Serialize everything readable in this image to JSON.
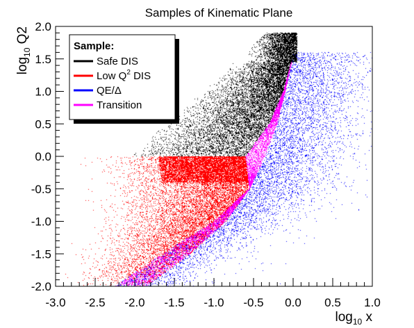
{
  "chart_data": {
    "type": "scatter",
    "title": "Samples of Kinematic Plane",
    "xlabel": {
      "prefix": "log",
      "sub": "10",
      "suffix": " x"
    },
    "ylabel": {
      "prefix": "log",
      "sub": "10",
      "suffix": " Q2"
    },
    "xlim": [
      -3.0,
      1.0
    ],
    "ylim": [
      -2.0,
      2.0
    ],
    "x_ticks": [
      "-3.0",
      "-2.5",
      "-2.0",
      "-1.5",
      "-1.0",
      "-0.5",
      "0.0",
      "0.5",
      "1.0"
    ],
    "y_ticks": [
      "-2.0",
      "-1.5",
      "-1.0",
      "-0.5",
      "0.0",
      "0.5",
      "1.0",
      "1.5",
      "2.0"
    ],
    "grid": false,
    "legend": {
      "header": "Sample:",
      "placement": "top-left",
      "entries": [
        {
          "label": "Safe DIS",
          "sup": "",
          "suffix": "",
          "color": "#000000"
        },
        {
          "label": "Low Q",
          "sup": "2",
          "suffix": " DIS",
          "color": "#ff0000"
        },
        {
          "label": "QE/Δ",
          "sup": "",
          "suffix": "",
          "color": "#0000ff"
        },
        {
          "label": "Transition",
          "sup": "",
          "suffix": "",
          "color": "#ff00ff"
        }
      ]
    },
    "series": [
      {
        "name": "Safe DIS",
        "color": "#000000",
        "region": {
          "x_boundary_at_y": [
            [
              0.0,
              -0.6
            ],
            [
              0.5,
              -0.3
            ],
            [
              1.0,
              -0.12
            ],
            [
              1.45,
              -0.02
            ]
          ],
          "y_range": [
            0.0,
            1.9
          ],
          "x_min": -1.9
        }
      },
      {
        "name": "Low Q2 DIS",
        "color": "#ff0000",
        "region": {
          "y_range": [
            -2.0,
            0.0
          ],
          "x_range": [
            -3.0,
            -0.6
          ]
        }
      },
      {
        "name": "Transition",
        "color": "#ff00ff",
        "region": {
          "band_lower": [
            [
              -2.0,
              -2.25
            ],
            [
              -1.5,
              -1.65
            ],
            [
              -1.0,
              -1.0
            ],
            [
              -0.5,
              -0.55
            ],
            [
              0.0,
              -0.35
            ],
            [
              0.5,
              -0.2
            ],
            [
              1.0,
              -0.1
            ],
            [
              1.45,
              -0.02
            ]
          ],
          "band_upper": [
            [
              -2.0,
              -1.85
            ],
            [
              -1.5,
              -1.3
            ],
            [
              -1.0,
              -0.85
            ],
            [
              -0.5,
              -0.55
            ],
            [
              0.0,
              -0.6
            ],
            [
              0.5,
              -0.3
            ],
            [
              1.0,
              -0.12
            ],
            [
              1.45,
              -0.02
            ]
          ]
        }
      },
      {
        "name": "QE/Δ",
        "color": "#0000ff",
        "region": {
          "y_range": [
            -2.0,
            1.9
          ],
          "x_max": 1.0
        }
      }
    ]
  }
}
